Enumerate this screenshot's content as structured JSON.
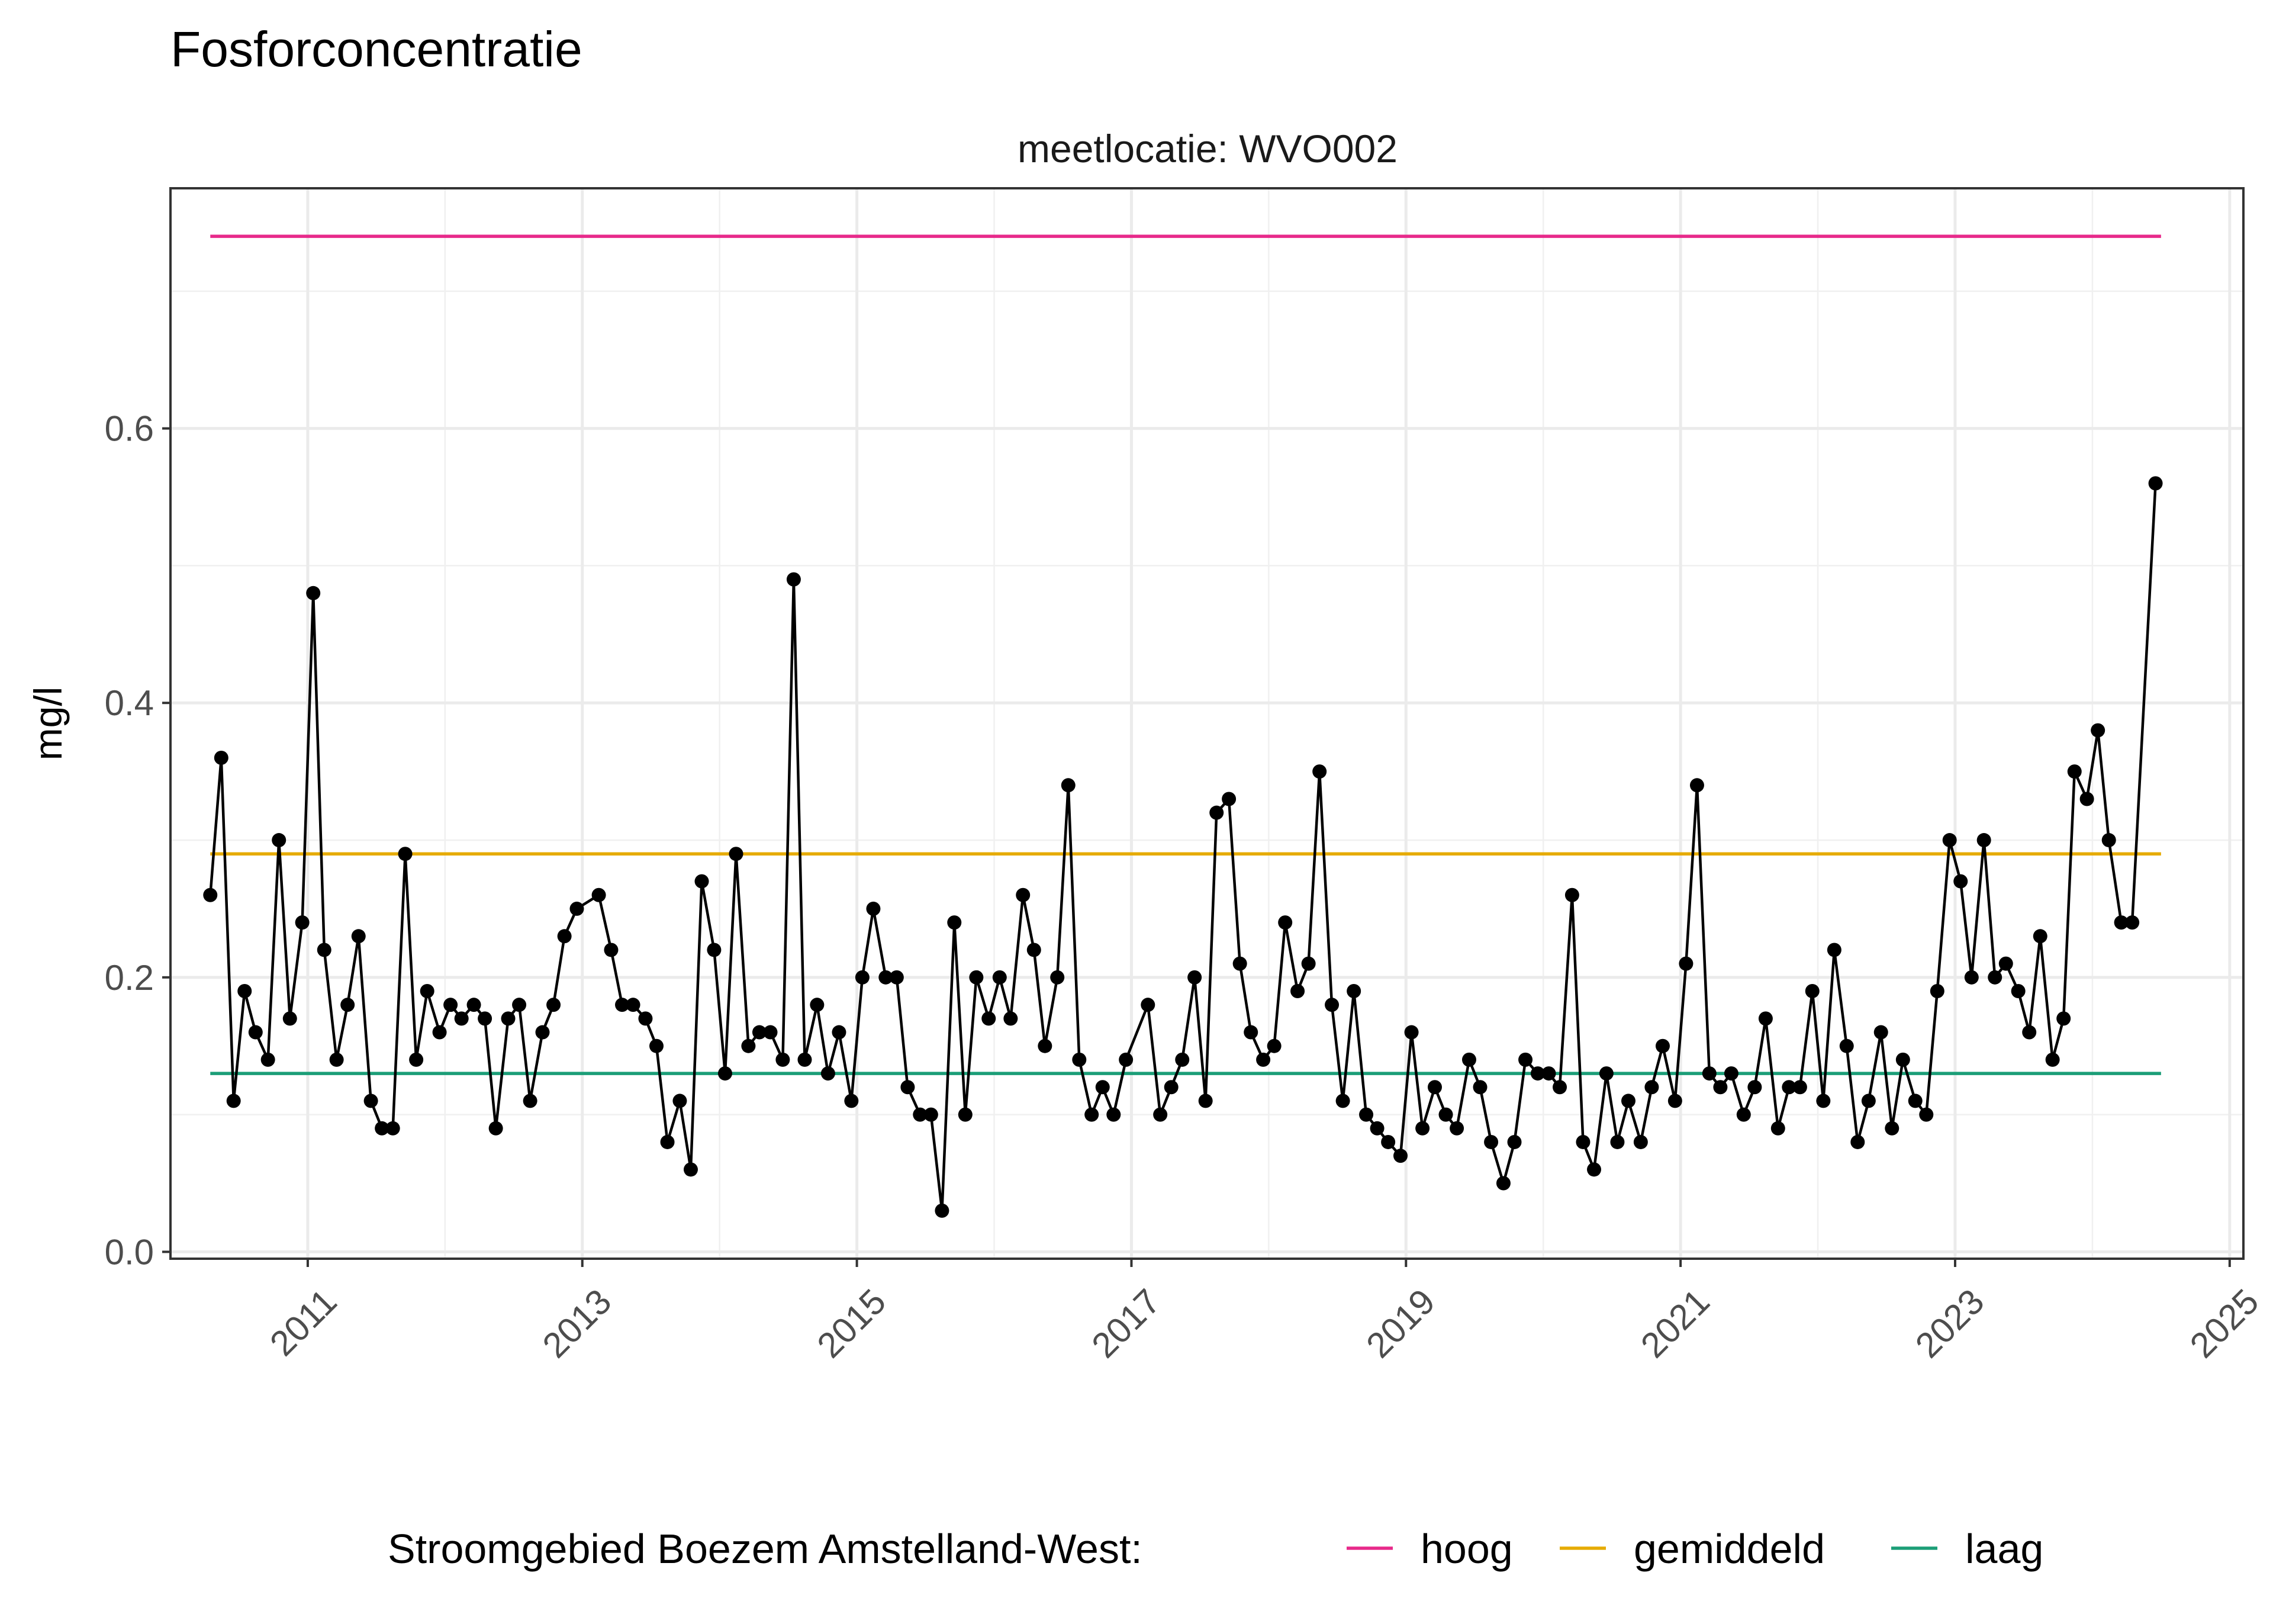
{
  "title": "Fosforconcentratie",
  "subtitle": "meetlocatie: WVO002",
  "chart_data": {
    "type": "line",
    "title": "Fosforconcentratie",
    "facet_label": "meetlocatie: WVO002",
    "xlabel": "",
    "ylabel": "mg/l",
    "xlim": [
      2010.0,
      2025.1
    ],
    "ylim": [
      -0.005,
      0.775
    ],
    "x_ticks": [
      "2011",
      "2013",
      "2015",
      "2017",
      "2019",
      "2021",
      "2023",
      "2025"
    ],
    "y_ticks": [
      "0.0",
      "0.2",
      "0.4",
      "0.6"
    ],
    "grid": true,
    "legend": {
      "title": "Stroomgebied Boezem Amstelland-West:",
      "position": "bottom",
      "items": [
        {
          "label": "hoog",
          "color": "#e7298a"
        },
        {
          "label": "gemiddeld",
          "color": "#e6ab02"
        },
        {
          "label": "laag",
          "color": "#1b9e77"
        }
      ]
    },
    "reference_lines": [
      {
        "name": "hoog",
        "value": 0.74,
        "x_start": 2010.29,
        "x_end": 2024.5,
        "color": "#e7298a"
      },
      {
        "name": "gemiddeld",
        "value": 0.29,
        "x_start": 2010.29,
        "x_end": 2024.5,
        "color": "#e6ab02"
      },
      {
        "name": "laag",
        "value": 0.13,
        "x_start": 2010.29,
        "x_end": 2024.5,
        "color": "#1b9e77"
      }
    ],
    "series": [
      {
        "color": "#000000",
        "points": [
          [
            2010.29,
            0.26
          ],
          [
            2010.37,
            0.36
          ],
          [
            2010.46,
            0.11
          ],
          [
            2010.54,
            0.19
          ],
          [
            2010.62,
            0.16
          ],
          [
            2010.71,
            0.14
          ],
          [
            2010.79,
            0.3
          ],
          [
            2010.87,
            0.17
          ],
          [
            2010.96,
            0.24
          ],
          [
            2011.04,
            0.48
          ],
          [
            2011.12,
            0.22
          ],
          [
            2011.21,
            0.14
          ],
          [
            2011.29,
            0.18
          ],
          [
            2011.37,
            0.23
          ],
          [
            2011.46,
            0.11
          ],
          [
            2011.54,
            0.09
          ],
          [
            2011.62,
            0.09
          ],
          [
            2011.71,
            0.29
          ],
          [
            2011.79,
            0.14
          ],
          [
            2011.87,
            0.19
          ],
          [
            2011.96,
            0.16
          ],
          [
            2012.04,
            0.18
          ],
          [
            2012.12,
            0.17
          ],
          [
            2012.21,
            0.18
          ],
          [
            2012.29,
            0.17
          ],
          [
            2012.37,
            0.09
          ],
          [
            2012.46,
            0.17
          ],
          [
            2012.54,
            0.18
          ],
          [
            2012.62,
            0.11
          ],
          [
            2012.71,
            0.16
          ],
          [
            2012.79,
            0.18
          ],
          [
            2012.87,
            0.23
          ],
          [
            2012.96,
            0.25
          ],
          [
            2013.12,
            0.26
          ],
          [
            2013.21,
            0.22
          ],
          [
            2013.29,
            0.18
          ],
          [
            2013.37,
            0.18
          ],
          [
            2013.46,
            0.17
          ],
          [
            2013.54,
            0.15
          ],
          [
            2013.62,
            0.08
          ],
          [
            2013.71,
            0.11
          ],
          [
            2013.79,
            0.06
          ],
          [
            2013.87,
            0.27
          ],
          [
            2013.96,
            0.22
          ],
          [
            2014.04,
            0.13
          ],
          [
            2014.12,
            0.29
          ],
          [
            2014.21,
            0.15
          ],
          [
            2014.29,
            0.16
          ],
          [
            2014.37,
            0.16
          ],
          [
            2014.46,
            0.14
          ],
          [
            2014.54,
            0.49
          ],
          [
            2014.62,
            0.14
          ],
          [
            2014.71,
            0.18
          ],
          [
            2014.79,
            0.13
          ],
          [
            2014.87,
            0.16
          ],
          [
            2014.96,
            0.11
          ],
          [
            2015.04,
            0.2
          ],
          [
            2015.12,
            0.25
          ],
          [
            2015.21,
            0.2
          ],
          [
            2015.29,
            0.2
          ],
          [
            2015.37,
            0.12
          ],
          [
            2015.46,
            0.1
          ],
          [
            2015.54,
            0.1
          ],
          [
            2015.62,
            0.03
          ],
          [
            2015.71,
            0.24
          ],
          [
            2015.79,
            0.1
          ],
          [
            2015.87,
            0.2
          ],
          [
            2015.96,
            0.17
          ],
          [
            2016.04,
            0.2
          ],
          [
            2016.12,
            0.17
          ],
          [
            2016.21,
            0.26
          ],
          [
            2016.29,
            0.22
          ],
          [
            2016.37,
            0.15
          ],
          [
            2016.46,
            0.2
          ],
          [
            2016.54,
            0.34
          ],
          [
            2016.62,
            0.14
          ],
          [
            2016.71,
            0.1
          ],
          [
            2016.79,
            0.12
          ],
          [
            2016.87,
            0.1
          ],
          [
            2016.96,
            0.14
          ],
          [
            2017.12,
            0.18
          ],
          [
            2017.21,
            0.1
          ],
          [
            2017.29,
            0.12
          ],
          [
            2017.37,
            0.14
          ],
          [
            2017.46,
            0.2
          ],
          [
            2017.54,
            0.11
          ],
          [
            2017.62,
            0.32
          ],
          [
            2017.71,
            0.33
          ],
          [
            2017.79,
            0.21
          ],
          [
            2017.87,
            0.16
          ],
          [
            2017.96,
            0.14
          ],
          [
            2018.04,
            0.15
          ],
          [
            2018.12,
            0.24
          ],
          [
            2018.21,
            0.19
          ],
          [
            2018.29,
            0.21
          ],
          [
            2018.37,
            0.35
          ],
          [
            2018.46,
            0.18
          ],
          [
            2018.54,
            0.11
          ],
          [
            2018.62,
            0.19
          ],
          [
            2018.71,
            0.1
          ],
          [
            2018.79,
            0.09
          ],
          [
            2018.87,
            0.08
          ],
          [
            2018.96,
            0.07
          ],
          [
            2019.04,
            0.16
          ],
          [
            2019.12,
            0.09
          ],
          [
            2019.21,
            0.12
          ],
          [
            2019.29,
            0.1
          ],
          [
            2019.37,
            0.09
          ],
          [
            2019.46,
            0.14
          ],
          [
            2019.54,
            0.12
          ],
          [
            2019.62,
            0.08
          ],
          [
            2019.71,
            0.05
          ],
          [
            2019.79,
            0.08
          ],
          [
            2019.87,
            0.14
          ],
          [
            2019.96,
            0.13
          ],
          [
            2020.04,
            0.13
          ],
          [
            2020.12,
            0.12
          ],
          [
            2020.21,
            0.26
          ],
          [
            2020.29,
            0.08
          ],
          [
            2020.37,
            0.06
          ],
          [
            2020.46,
            0.13
          ],
          [
            2020.54,
            0.08
          ],
          [
            2020.62,
            0.11
          ],
          [
            2020.71,
            0.08
          ],
          [
            2020.79,
            0.12
          ],
          [
            2020.87,
            0.15
          ],
          [
            2020.96,
            0.11
          ],
          [
            2021.04,
            0.21
          ],
          [
            2021.12,
            0.34
          ],
          [
            2021.21,
            0.13
          ],
          [
            2021.29,
            0.12
          ],
          [
            2021.37,
            0.13
          ],
          [
            2021.46,
            0.1
          ],
          [
            2021.54,
            0.12
          ],
          [
            2021.62,
            0.17
          ],
          [
            2021.71,
            0.09
          ],
          [
            2021.79,
            0.12
          ],
          [
            2021.87,
            0.12
          ],
          [
            2021.96,
            0.19
          ],
          [
            2022.04,
            0.11
          ],
          [
            2022.12,
            0.22
          ],
          [
            2022.21,
            0.15
          ],
          [
            2022.29,
            0.08
          ],
          [
            2022.37,
            0.11
          ],
          [
            2022.46,
            0.16
          ],
          [
            2022.54,
            0.09
          ],
          [
            2022.62,
            0.14
          ],
          [
            2022.71,
            0.11
          ],
          [
            2022.79,
            0.1
          ],
          [
            2022.87,
            0.19
          ],
          [
            2022.96,
            0.3
          ],
          [
            2023.04,
            0.27
          ],
          [
            2023.12,
            0.2
          ],
          [
            2023.21,
            0.3
          ],
          [
            2023.29,
            0.2
          ],
          [
            2023.37,
            0.21
          ],
          [
            2023.46,
            0.19
          ],
          [
            2023.54,
            0.16
          ],
          [
            2023.62,
            0.23
          ],
          [
            2023.71,
            0.14
          ],
          [
            2023.79,
            0.17
          ],
          [
            2023.87,
            0.35
          ],
          [
            2023.96,
            0.33
          ],
          [
            2024.04,
            0.38
          ],
          [
            2024.12,
            0.3
          ],
          [
            2024.21,
            0.24
          ],
          [
            2024.29,
            0.24
          ],
          [
            2024.46,
            0.56
          ]
        ]
      }
    ]
  }
}
